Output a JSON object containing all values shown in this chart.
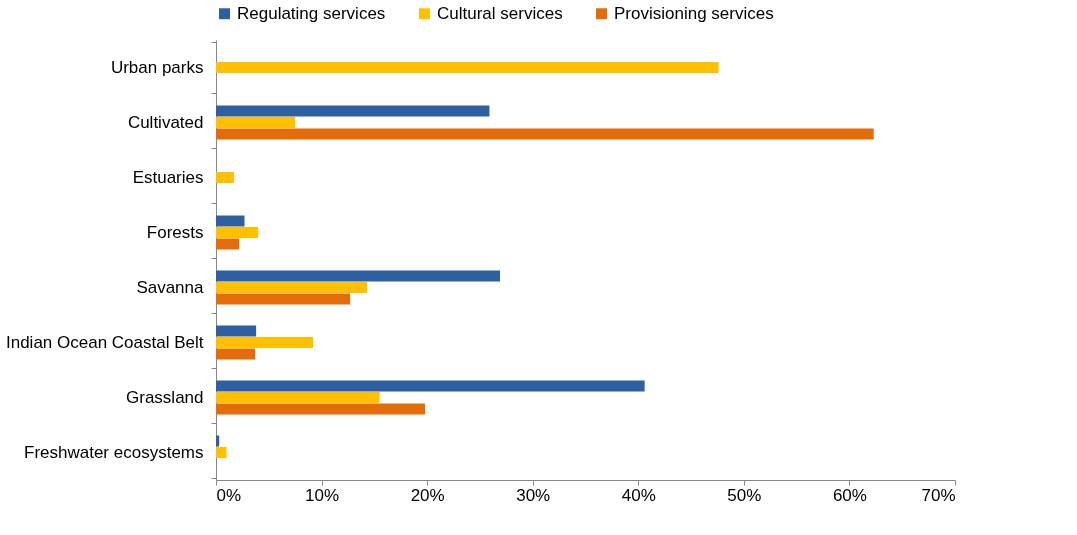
{
  "chart_data": {
    "type": "bar",
    "orientation": "horizontal",
    "legend": "top",
    "categories": [
      "Urban parks",
      "Cultivated",
      "Estuaries",
      "Forests",
      "Savanna",
      "Indian Ocean Coastal Belt",
      "Grassland",
      "Freshwater ecosystems"
    ],
    "series": [
      {
        "name": "Regulating services",
        "color": "#2e5fa3",
        "values": [
          0,
          25.9,
          0,
          2.7,
          26.9,
          3.8,
          40.6,
          0.3
        ]
      },
      {
        "name": "Cultural services",
        "color": "#ffc000",
        "values": [
          47.6,
          7.5,
          1.7,
          4.0,
          14.3,
          9.2,
          15.5,
          1.0
        ]
      },
      {
        "name": "Provisioning services",
        "color": "#e46c0a",
        "values": [
          0,
          62.3,
          0,
          2.2,
          12.7,
          3.7,
          19.8,
          0
        ]
      }
    ],
    "xlim": [
      0,
      70
    ],
    "xticks": [
      {
        "value": 0,
        "label": "0%"
      },
      {
        "value": 10,
        "label": "10%"
      },
      {
        "value": 20,
        "label": "20%"
      },
      {
        "value": 30,
        "label": "30%"
      },
      {
        "value": 40,
        "label": "40%"
      },
      {
        "value": 50,
        "label": "50%"
      },
      {
        "value": 60,
        "label": "60%"
      },
      {
        "value": 70,
        "label": "70%"
      }
    ],
    "grid": false
  }
}
